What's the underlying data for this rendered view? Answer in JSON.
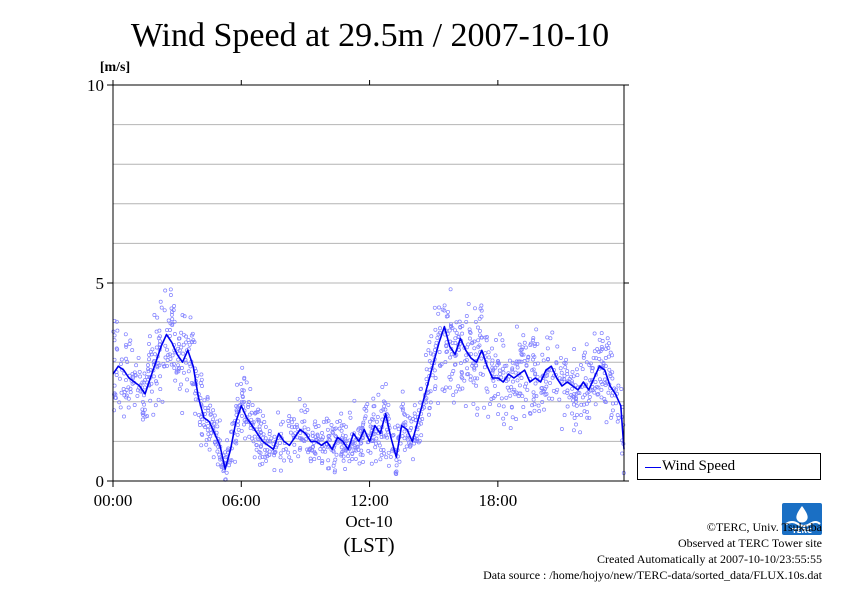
{
  "chart_data": {
    "type": "scatter",
    "title": "Wind Speed at 29.5m / 2007-10-10",
    "ylabel": "[m/s]",
    "ylim": [
      0,
      10
    ],
    "yticks": [
      "0",
      "5",
      "10"
    ],
    "xlim_hours": [
      0,
      23.9
    ],
    "xticks": [
      {
        "hour": 0,
        "label": "00:00"
      },
      {
        "hour": 6,
        "label": "06:00"
      },
      {
        "hour": 12,
        "label": "12:00"
      },
      {
        "hour": 18,
        "label": "18:00"
      }
    ],
    "xdate_label": "Oct-10",
    "xunit_label": "(LST)",
    "grid": true,
    "legend": "bottom-right, outside",
    "series": [
      {
        "name": "Wind Speed",
        "color": "#0000ee",
        "scatter_color": "#8080ff",
        "x_hours": [
          0.0,
          0.25,
          0.5,
          0.75,
          1.0,
          1.25,
          1.5,
          1.75,
          2.0,
          2.25,
          2.5,
          2.75,
          3.0,
          3.25,
          3.5,
          3.75,
          4.0,
          4.25,
          4.5,
          4.75,
          5.0,
          5.25,
          5.5,
          5.75,
          6.0,
          6.25,
          6.5,
          6.75,
          7.0,
          7.25,
          7.5,
          7.75,
          8.0,
          8.25,
          8.5,
          8.75,
          9.0,
          9.25,
          9.5,
          9.75,
          10.0,
          10.25,
          10.5,
          10.75,
          11.0,
          11.25,
          11.5,
          11.75,
          12.0,
          12.25,
          12.5,
          12.75,
          13.0,
          13.25,
          13.5,
          13.75,
          14.0,
          14.25,
          14.5,
          14.75,
          15.0,
          15.25,
          15.5,
          15.75,
          16.0,
          16.25,
          16.5,
          16.75,
          17.0,
          17.25,
          17.5,
          17.75,
          18.0,
          18.25,
          18.5,
          18.75,
          19.0,
          19.25,
          19.5,
          19.75,
          20.0,
          20.25,
          20.5,
          20.75,
          21.0,
          21.25,
          21.5,
          21.75,
          22.0,
          22.25,
          22.5,
          22.75,
          23.0,
          23.25,
          23.5,
          23.75,
          23.9
        ],
        "values": [
          2.7,
          2.9,
          2.8,
          2.6,
          2.5,
          2.4,
          2.2,
          2.6,
          3.0,
          3.4,
          3.7,
          3.5,
          3.2,
          3.0,
          3.3,
          2.9,
          2.1,
          1.6,
          1.5,
          1.2,
          0.9,
          0.3,
          0.8,
          1.5,
          1.9,
          1.6,
          1.4,
          1.2,
          1.0,
          0.9,
          0.8,
          1.2,
          1.0,
          0.9,
          1.1,
          1.3,
          1.2,
          1.0,
          1.0,
          0.9,
          1.0,
          0.8,
          1.1,
          1.0,
          0.8,
          1.2,
          1.0,
          1.3,
          1.0,
          1.4,
          1.2,
          1.7,
          1.1,
          0.6,
          1.4,
          1.3,
          1.0,
          1.5,
          2.0,
          2.5,
          3.0,
          3.5,
          3.9,
          3.4,
          3.2,
          3.6,
          3.3,
          3.1,
          3.0,
          3.3,
          2.9,
          2.6,
          2.6,
          2.5,
          2.7,
          2.6,
          2.7,
          2.8,
          2.5,
          2.6,
          2.5,
          2.8,
          2.9,
          2.6,
          2.4,
          2.5,
          2.4,
          2.3,
          2.5,
          2.3,
          2.6,
          2.9,
          2.8,
          2.4,
          2.2,
          1.9,
          0.8
        ]
      }
    ]
  },
  "credits": {
    "copyright": "©TERC, Univ. Tsukuba",
    "observed": "Observed at TERC Tower site",
    "created": "Created Automatically at 2007-10-10/23:55:55",
    "source": "Data source : /home/hojyo/new/TERC-data/sorted_data/FLUX.10s.dat"
  },
  "logo": {
    "text": "TERC",
    "color": "#1a6fc4"
  }
}
